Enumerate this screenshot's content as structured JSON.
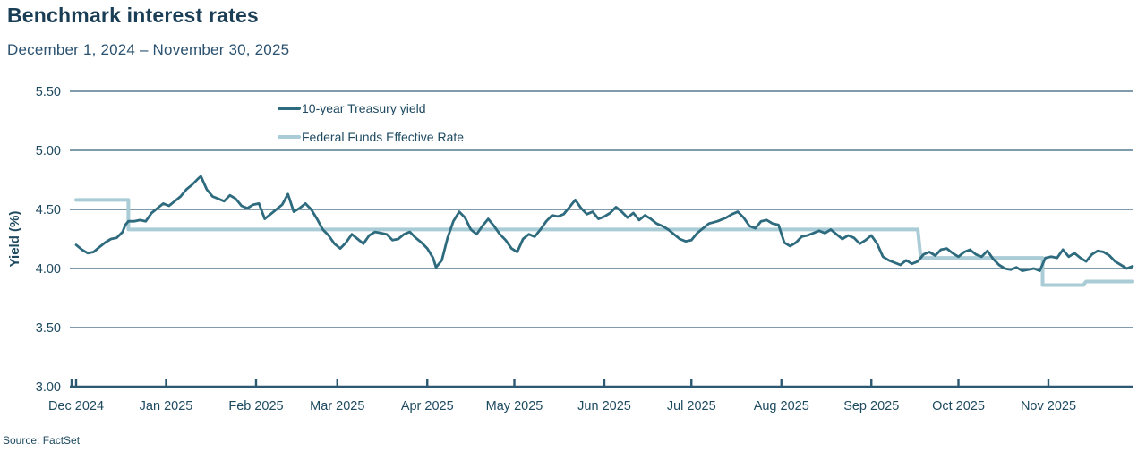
{
  "header": {
    "title": "Benchmark interest rates",
    "date_range": "December 1, 2024 – November 30, 2025"
  },
  "legend": {
    "items": [
      {
        "label": "10-year Treasury yield",
        "color": "#2e6b7e"
      },
      {
        "label": "Federal Funds Effective Rate",
        "color": "#a9ccd6"
      }
    ]
  },
  "colors": {
    "title_text": "#1a3e56",
    "subtitle_text": "#2b5270",
    "axis_text": "#1e4a60",
    "gridline": "#35607a",
    "axis_line": "#2d5871",
    "treasury_line": "#2e6b7e",
    "fed_funds_line": "#a9ccd6"
  },
  "source": "Source: FactSet",
  "chart_data": {
    "type": "line",
    "title": "Benchmark interest rates",
    "subtitle": "December 1, 2024 – November 30, 2025",
    "xlabel": "",
    "ylabel": "Yield (%)",
    "ylim": [
      3.0,
      5.5
    ],
    "yticks": [
      5.5,
      5.0,
      4.5,
      4.0,
      3.5,
      3.0
    ],
    "grid": true,
    "legend_position": "top-center-left",
    "x_unit": "days since 2024-12-01",
    "xticks": [
      {
        "label": "Dec 2024",
        "day": 0
      },
      {
        "label": "Jan 2025",
        "day": 31
      },
      {
        "label": "Feb 2025",
        "day": 62
      },
      {
        "label": "Mar 2025",
        "day": 90
      },
      {
        "label": "Apr 2025",
        "day": 121
      },
      {
        "label": "May 2025",
        "day": 151
      },
      {
        "label": "Jun 2025",
        "day": 182
      },
      {
        "label": "Jul 2025",
        "day": 212
      },
      {
        "label": "Aug 2025",
        "day": 243
      },
      {
        "label": "Sep 2025",
        "day": 274
      },
      {
        "label": "Oct 2025",
        "day": 304
      },
      {
        "label": "Nov 2025",
        "day": 335
      }
    ],
    "series": [
      {
        "name": "Federal Funds Effective Rate",
        "color": "#a9ccd6",
        "stroke_width": 4,
        "step": true,
        "points": [
          [
            0,
            4.58
          ],
          [
            18,
            4.58
          ],
          [
            18,
            4.33
          ],
          [
            290,
            4.33
          ],
          [
            291,
            4.09
          ],
          [
            333,
            4.09
          ],
          [
            333,
            3.86
          ],
          [
            347,
            3.86
          ],
          [
            348,
            3.89
          ],
          [
            364,
            3.89
          ]
        ]
      },
      {
        "name": "10-year Treasury yield",
        "color": "#2e6b7e",
        "stroke_width": 2.8,
        "step": false,
        "points": [
          [
            0,
            4.2
          ],
          [
            2,
            4.16
          ],
          [
            4,
            4.13
          ],
          [
            6,
            4.14
          ],
          [
            8,
            4.18
          ],
          [
            10,
            4.22
          ],
          [
            12,
            4.25
          ],
          [
            14,
            4.26
          ],
          [
            16,
            4.31
          ],
          [
            17,
            4.37
          ],
          [
            18,
            4.4
          ],
          [
            20,
            4.4
          ],
          [
            22,
            4.41
          ],
          [
            24,
            4.4
          ],
          [
            26,
            4.47
          ],
          [
            28,
            4.51
          ],
          [
            30,
            4.55
          ],
          [
            32,
            4.53
          ],
          [
            34,
            4.57
          ],
          [
            36,
            4.61
          ],
          [
            38,
            4.67
          ],
          [
            40,
            4.71
          ],
          [
            42,
            4.76
          ],
          [
            43,
            4.78
          ],
          [
            45,
            4.67
          ],
          [
            47,
            4.61
          ],
          [
            49,
            4.59
          ],
          [
            51,
            4.57
          ],
          [
            53,
            4.62
          ],
          [
            55,
            4.59
          ],
          [
            57,
            4.53
          ],
          [
            59,
            4.51
          ],
          [
            61,
            4.54
          ],
          [
            63,
            4.55
          ],
          [
            65,
            4.42
          ],
          [
            67,
            4.46
          ],
          [
            69,
            4.5
          ],
          [
            71,
            4.54
          ],
          [
            73,
            4.63
          ],
          [
            75,
            4.48
          ],
          [
            77,
            4.51
          ],
          [
            79,
            4.55
          ],
          [
            81,
            4.5
          ],
          [
            83,
            4.42
          ],
          [
            85,
            4.33
          ],
          [
            87,
            4.28
          ],
          [
            89,
            4.21
          ],
          [
            91,
            4.17
          ],
          [
            93,
            4.22
          ],
          [
            95,
            4.29
          ],
          [
            97,
            4.25
          ],
          [
            99,
            4.21
          ],
          [
            101,
            4.28
          ],
          [
            103,
            4.31
          ],
          [
            105,
            4.3
          ],
          [
            107,
            4.29
          ],
          [
            109,
            4.24
          ],
          [
            111,
            4.25
          ],
          [
            113,
            4.29
          ],
          [
            115,
            4.31
          ],
          [
            117,
            4.26
          ],
          [
            119,
            4.22
          ],
          [
            121,
            4.17
          ],
          [
            123,
            4.09
          ],
          [
            124,
            4.01
          ],
          [
            126,
            4.07
          ],
          [
            128,
            4.26
          ],
          [
            130,
            4.4
          ],
          [
            132,
            4.48
          ],
          [
            134,
            4.43
          ],
          [
            136,
            4.33
          ],
          [
            138,
            4.29
          ],
          [
            140,
            4.36
          ],
          [
            142,
            4.42
          ],
          [
            144,
            4.36
          ],
          [
            146,
            4.29
          ],
          [
            148,
            4.24
          ],
          [
            150,
            4.17
          ],
          [
            152,
            4.14
          ],
          [
            154,
            4.25
          ],
          [
            156,
            4.29
          ],
          [
            158,
            4.27
          ],
          [
            160,
            4.33
          ],
          [
            162,
            4.4
          ],
          [
            164,
            4.45
          ],
          [
            166,
            4.44
          ],
          [
            168,
            4.46
          ],
          [
            170,
            4.52
          ],
          [
            172,
            4.58
          ],
          [
            174,
            4.51
          ],
          [
            176,
            4.46
          ],
          [
            178,
            4.48
          ],
          [
            180,
            4.42
          ],
          [
            182,
            4.44
          ],
          [
            184,
            4.47
          ],
          [
            186,
            4.52
          ],
          [
            188,
            4.48
          ],
          [
            190,
            4.43
          ],
          [
            192,
            4.47
          ],
          [
            194,
            4.41
          ],
          [
            196,
            4.45
          ],
          [
            198,
            4.42
          ],
          [
            200,
            4.38
          ],
          [
            202,
            4.36
          ],
          [
            204,
            4.33
          ],
          [
            206,
            4.29
          ],
          [
            208,
            4.25
          ],
          [
            210,
            4.23
          ],
          [
            212,
            4.24
          ],
          [
            214,
            4.3
          ],
          [
            216,
            4.34
          ],
          [
            218,
            4.38
          ],
          [
            221,
            4.4
          ],
          [
            224,
            4.43
          ],
          [
            226,
            4.46
          ],
          [
            228,
            4.48
          ],
          [
            230,
            4.43
          ],
          [
            232,
            4.36
          ],
          [
            234,
            4.34
          ],
          [
            236,
            4.4
          ],
          [
            238,
            4.41
          ],
          [
            240,
            4.38
          ],
          [
            242,
            4.37
          ],
          [
            244,
            4.22
          ],
          [
            246,
            4.19
          ],
          [
            248,
            4.22
          ],
          [
            250,
            4.27
          ],
          [
            252,
            4.28
          ],
          [
            254,
            4.3
          ],
          [
            256,
            4.32
          ],
          [
            258,
            4.3
          ],
          [
            260,
            4.33
          ],
          [
            262,
            4.29
          ],
          [
            264,
            4.25
          ],
          [
            266,
            4.28
          ],
          [
            268,
            4.26
          ],
          [
            270,
            4.21
          ],
          [
            272,
            4.24
          ],
          [
            274,
            4.28
          ],
          [
            276,
            4.21
          ],
          [
            278,
            4.1
          ],
          [
            280,
            4.07
          ],
          [
            282,
            4.05
          ],
          [
            284,
            4.03
          ],
          [
            286,
            4.07
          ],
          [
            288,
            4.04
          ],
          [
            290,
            4.06
          ],
          [
            292,
            4.12
          ],
          [
            294,
            4.14
          ],
          [
            296,
            4.11
          ],
          [
            298,
            4.16
          ],
          [
            300,
            4.17
          ],
          [
            302,
            4.13
          ],
          [
            304,
            4.1
          ],
          [
            306,
            4.14
          ],
          [
            308,
            4.16
          ],
          [
            310,
            4.12
          ],
          [
            312,
            4.1
          ],
          [
            314,
            4.15
          ],
          [
            316,
            4.08
          ],
          [
            318,
            4.03
          ],
          [
            320,
            4.0
          ],
          [
            322,
            3.99
          ],
          [
            324,
            4.01
          ],
          [
            326,
            3.98
          ],
          [
            328,
            3.99
          ],
          [
            330,
            4.0
          ],
          [
            332,
            3.98
          ],
          [
            334,
            4.09
          ],
          [
            336,
            4.1
          ],
          [
            338,
            4.09
          ],
          [
            340,
            4.16
          ],
          [
            342,
            4.1
          ],
          [
            344,
            4.13
          ],
          [
            346,
            4.09
          ],
          [
            348,
            4.06
          ],
          [
            350,
            4.12
          ],
          [
            352,
            4.15
          ],
          [
            354,
            4.14
          ],
          [
            356,
            4.11
          ],
          [
            358,
            4.06
          ],
          [
            360,
            4.03
          ],
          [
            362,
            4.0
          ],
          [
            364,
            4.02
          ]
        ]
      }
    ],
    "source": "Source: FactSet"
  }
}
